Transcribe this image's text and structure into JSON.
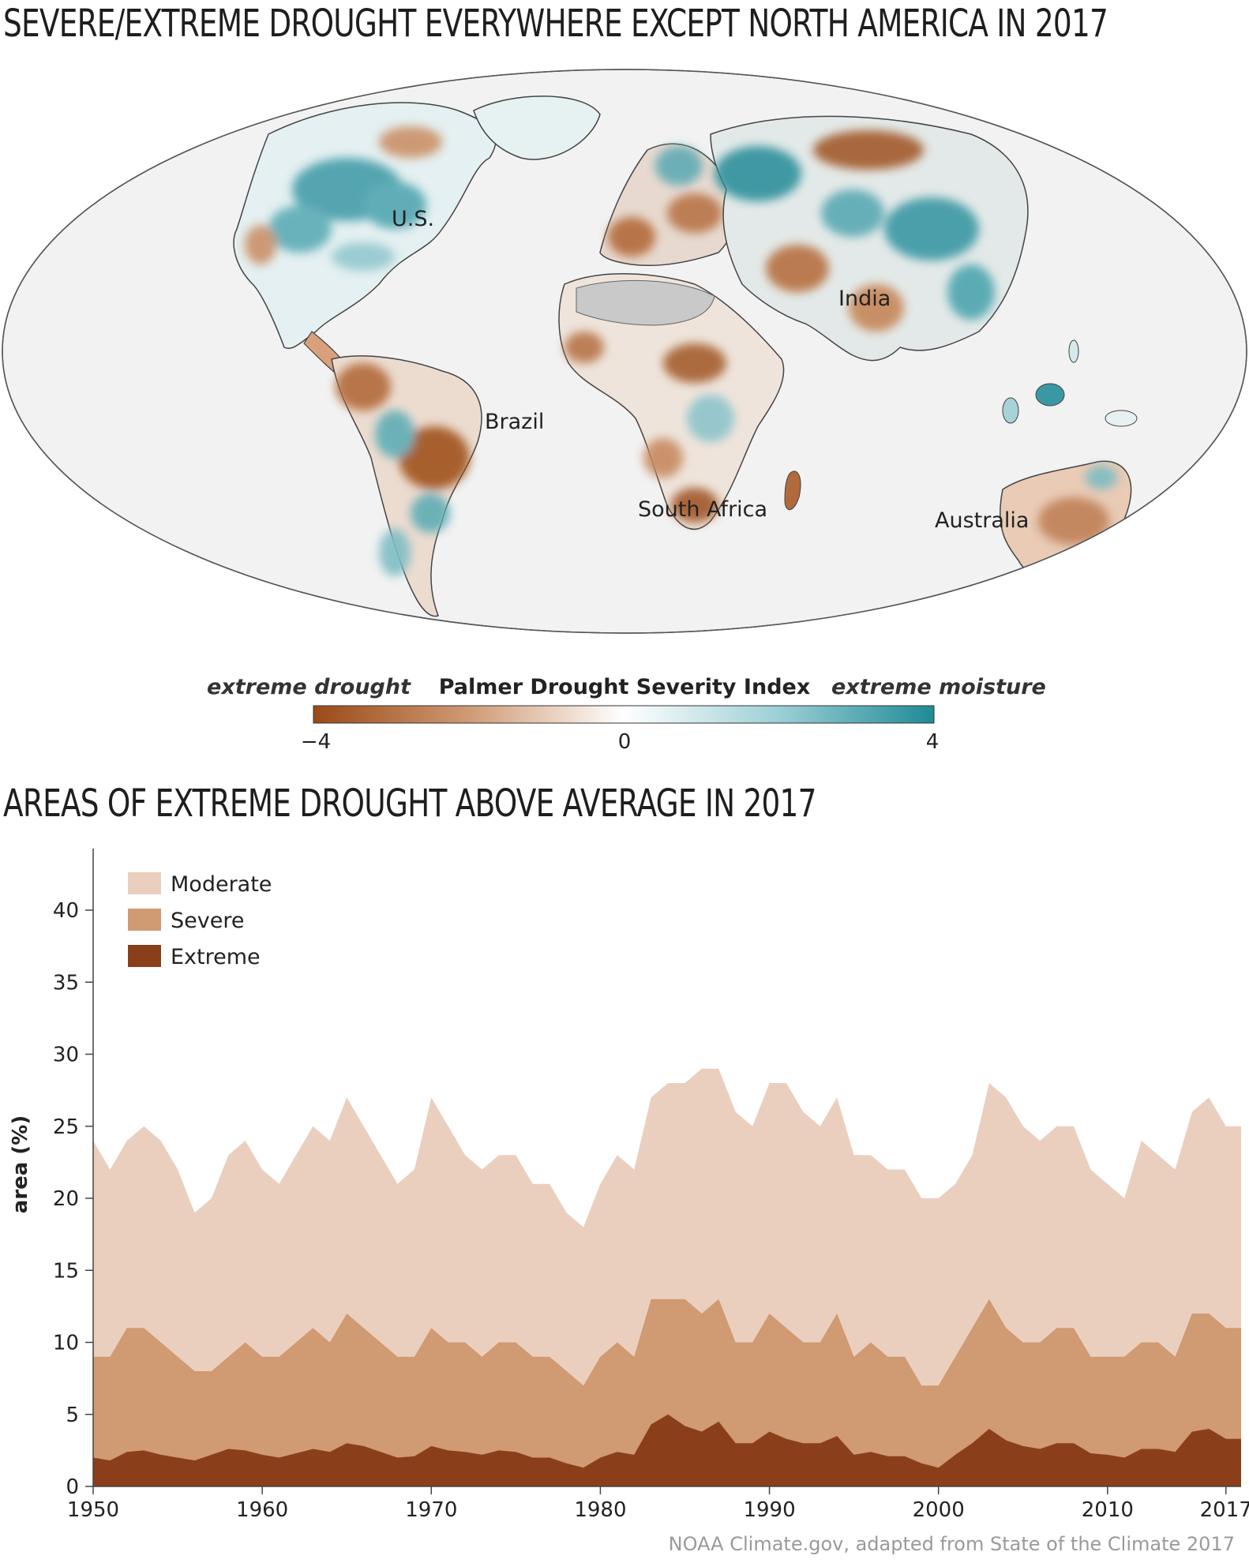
{
  "map": {
    "title": "SEVERE/EXTREME DROUGHT EVERYWHERE EXCEPT NORTH AMERICA IN 2017",
    "labels": {
      "us": "U.S.",
      "brazil": "Brazil",
      "india": "India",
      "south_africa": "South Africa",
      "australia": "Australia"
    },
    "legend": {
      "left_label": "extreme drought",
      "center_label": "Palmer Drought Severity Index",
      "right_label": "extreme moisture",
      "ticks": [
        "−4",
        "0",
        "4"
      ],
      "colors": {
        "dry": "#9a4a17",
        "neutral": "#ffffff",
        "wet": "#1f8a96",
        "missing": "#c9c9c9",
        "ocean": "#f2f2f2"
      }
    }
  },
  "chart_data": {
    "type": "area",
    "title": "AREAS OF EXTREME DROUGHT ABOVE AVERAGE IN 2017",
    "ylabel": "area (%)",
    "xlabel": "",
    "xlim": [
      1950,
      2017.9
    ],
    "ylim": [
      0,
      44
    ],
    "x_ticks": [
      1950,
      1960,
      1970,
      1980,
      1990,
      2000,
      2010,
      2017
    ],
    "y_ticks": [
      0,
      5,
      10,
      15,
      20,
      25,
      30,
      35,
      40
    ],
    "grid": false,
    "legend_position": "top-left",
    "stacking": "cumulative",
    "x": [
      1950,
      1951,
      1952,
      1953,
      1954,
      1955,
      1956,
      1957,
      1958,
      1959,
      1960,
      1961,
      1962,
      1963,
      1964,
      1965,
      1966,
      1967,
      1968,
      1969,
      1970,
      1971,
      1972,
      1973,
      1974,
      1975,
      1976,
      1977,
      1978,
      1979,
      1980,
      1981,
      1982,
      1983,
      1984,
      1985,
      1986,
      1987,
      1988,
      1989,
      1990,
      1991,
      1992,
      1993,
      1994,
      1995,
      1996,
      1997,
      1998,
      1999,
      2000,
      2001,
      2002,
      2003,
      2004,
      2005,
      2006,
      2007,
      2008,
      2009,
      2010,
      2011,
      2012,
      2013,
      2014,
      2015,
      2016,
      2017
    ],
    "series": [
      {
        "name": "Moderate",
        "color": "#ebcfbe",
        "values": [
          24,
          22,
          24,
          25,
          24,
          22,
          19,
          20,
          23,
          24,
          22,
          21,
          23,
          25,
          24,
          27,
          25,
          23,
          21,
          22,
          27,
          25,
          23,
          22,
          23,
          23,
          21,
          21,
          19,
          18,
          21,
          23,
          22,
          27,
          28,
          28,
          29,
          29,
          26,
          25,
          28,
          28,
          26,
          25,
          27,
          23,
          23,
          22,
          22,
          20,
          20,
          21,
          23,
          28,
          27,
          25,
          24,
          25,
          25,
          22,
          21,
          20,
          24,
          23,
          22,
          26,
          27,
          25
        ]
      },
      {
        "name": "Severe",
        "color": "#d09a72",
        "values": [
          9,
          9,
          11,
          11,
          10,
          9,
          8,
          8,
          9,
          10,
          9,
          9,
          10,
          11,
          10,
          12,
          11,
          10,
          9,
          9,
          11,
          10,
          10,
          9,
          10,
          10,
          9,
          9,
          8,
          7,
          9,
          10,
          9,
          13,
          13,
          13,
          12,
          13,
          10,
          10,
          12,
          11,
          10,
          10,
          12,
          9,
          10,
          9,
          9,
          7,
          7,
          9,
          11,
          13,
          11,
          10,
          10,
          11,
          11,
          9,
          9,
          9,
          10,
          10,
          9,
          12,
          12,
          11
        ]
      },
      {
        "name": "Extreme",
        "color": "#8a3f1a",
        "values": [
          2,
          1.8,
          2.4,
          2.5,
          2.2,
          2,
          1.8,
          2.2,
          2.6,
          2.5,
          2.2,
          2,
          2.3,
          2.6,
          2.4,
          3,
          2.8,
          2.4,
          2,
          2.1,
          2.8,
          2.5,
          2.4,
          2.2,
          2.5,
          2.4,
          2,
          2,
          1.6,
          1.3,
          2,
          2.4,
          2.2,
          4.3,
          5,
          4.2,
          3.8,
          4.5,
          3,
          3,
          3.8,
          3.3,
          3,
          3,
          3.5,
          2.2,
          2.4,
          2.1,
          2.1,
          1.6,
          1.3,
          2.2,
          3,
          4,
          3.2,
          2.8,
          2.6,
          3,
          3,
          2.3,
          2.2,
          2,
          2.6,
          2.6,
          2.4,
          3.8,
          4,
          3.3
        ]
      }
    ]
  },
  "source": "NOAA Climate.gov, adapted from State of the Climate 2017"
}
